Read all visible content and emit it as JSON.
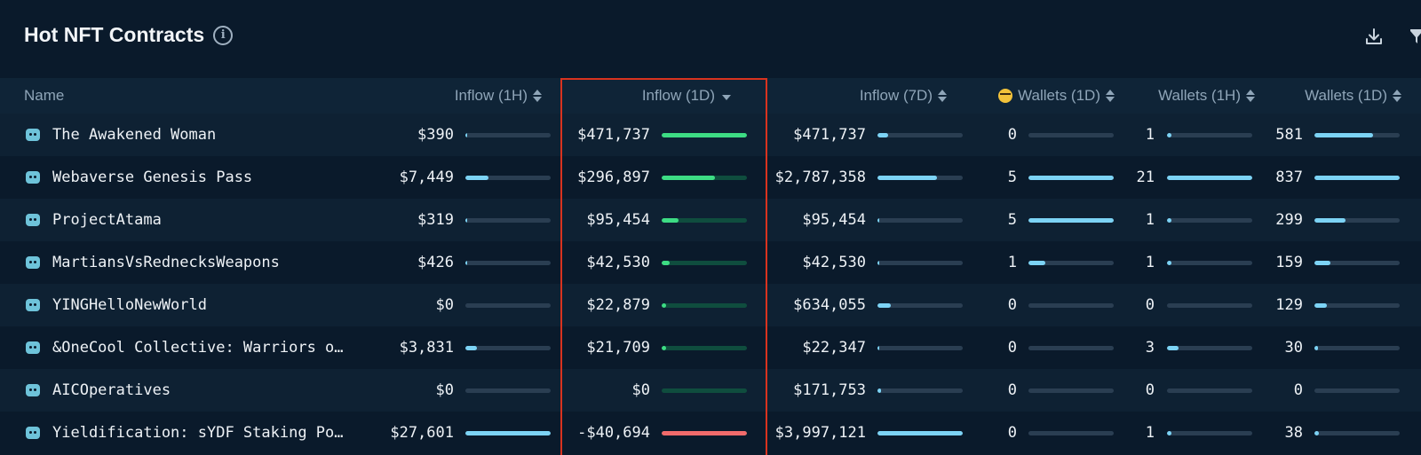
{
  "header": {
    "title": "Hot NFT Contracts",
    "info_glyph": "i"
  },
  "columns": [
    {
      "key": "name",
      "label": "Name",
      "sort": "none"
    },
    {
      "key": "inflow_1h",
      "label": "Inflow (1H)",
      "sort": "both"
    },
    {
      "key": "inflow_1d",
      "label": "Inflow (1D)",
      "sort": "desc"
    },
    {
      "key": "inflow_7d",
      "label": "Inflow (7D)",
      "sort": "both"
    },
    {
      "key": "smart_wallets_1d",
      "label": "Wallets (1D)",
      "sort": "both",
      "icon": "nerd-face-emoji-icon"
    },
    {
      "key": "wallets_1h",
      "label": "Wallets (1H)",
      "sort": "both"
    },
    {
      "key": "wallets_1d",
      "label": "Wallets (1D)",
      "sort": "both"
    }
  ],
  "rows": [
    {
      "name": "The Awakened Woman",
      "inflow_1h": {
        "text": "$390",
        "fill": 0.01
      },
      "inflow_1d": {
        "text": "$471,737",
        "fill": 1.0,
        "negative": false
      },
      "inflow_7d": {
        "text": "$471,737",
        "fill": 0.12
      },
      "smart_wallets_1d": {
        "text": "0",
        "fill": 0.0
      },
      "wallets_1h": {
        "text": "1",
        "fill": 0.05
      },
      "wallets_1d": {
        "text": "581",
        "fill": 0.69
      }
    },
    {
      "name": "Webaverse Genesis Pass",
      "inflow_1h": {
        "text": "$7,449",
        "fill": 0.27
      },
      "inflow_1d": {
        "text": "$296,897",
        "fill": 0.63,
        "negative": false
      },
      "inflow_7d": {
        "text": "$2,787,358",
        "fill": 0.7
      },
      "smart_wallets_1d": {
        "text": "5",
        "fill": 1.0
      },
      "wallets_1h": {
        "text": "21",
        "fill": 1.0
      },
      "wallets_1d": {
        "text": "837",
        "fill": 1.0
      }
    },
    {
      "name": "ProjectAtama",
      "inflow_1h": {
        "text": "$319",
        "fill": 0.01
      },
      "inflow_1d": {
        "text": "$95,454",
        "fill": 0.2,
        "negative": false
      },
      "inflow_7d": {
        "text": "$95,454",
        "fill": 0.02
      },
      "smart_wallets_1d": {
        "text": "5",
        "fill": 1.0
      },
      "wallets_1h": {
        "text": "1",
        "fill": 0.05
      },
      "wallets_1d": {
        "text": "299",
        "fill": 0.36
      }
    },
    {
      "name": "MartiansVsRednecksWeapons",
      "inflow_1h": {
        "text": "$426",
        "fill": 0.02
      },
      "inflow_1d": {
        "text": "$42,530",
        "fill": 0.09,
        "negative": false
      },
      "inflow_7d": {
        "text": "$42,530",
        "fill": 0.01
      },
      "smart_wallets_1d": {
        "text": "1",
        "fill": 0.2
      },
      "wallets_1h": {
        "text": "1",
        "fill": 0.05
      },
      "wallets_1d": {
        "text": "159",
        "fill": 0.19
      }
    },
    {
      "name": "YINGHelloNewWorld",
      "inflow_1h": {
        "text": "$0",
        "fill": 0.0
      },
      "inflow_1d": {
        "text": "$22,879",
        "fill": 0.05,
        "negative": false
      },
      "inflow_7d": {
        "text": "$634,055",
        "fill": 0.16
      },
      "smart_wallets_1d": {
        "text": "0",
        "fill": 0.0
      },
      "wallets_1h": {
        "text": "0",
        "fill": 0.0
      },
      "wallets_1d": {
        "text": "129",
        "fill": 0.15
      }
    },
    {
      "name": "&OneCool Collective: Warriors o…",
      "inflow_1h": {
        "text": "$3,831",
        "fill": 0.14
      },
      "inflow_1d": {
        "text": "$21,709",
        "fill": 0.05,
        "negative": false
      },
      "inflow_7d": {
        "text": "$22,347",
        "fill": 0.01
      },
      "smart_wallets_1d": {
        "text": "0",
        "fill": 0.0
      },
      "wallets_1h": {
        "text": "3",
        "fill": 0.14
      },
      "wallets_1d": {
        "text": "30",
        "fill": 0.04
      }
    },
    {
      "name": "AICOperatives",
      "inflow_1h": {
        "text": "$0",
        "fill": 0.0
      },
      "inflow_1d": {
        "text": "$0",
        "fill": 0.0,
        "negative": false
      },
      "inflow_7d": {
        "text": "$171,753",
        "fill": 0.04
      },
      "smart_wallets_1d": {
        "text": "0",
        "fill": 0.0
      },
      "wallets_1h": {
        "text": "0",
        "fill": 0.0
      },
      "wallets_1d": {
        "text": "0",
        "fill": 0.0
      }
    },
    {
      "name": "Yieldification: sYDF Staking Po…",
      "inflow_1h": {
        "text": "$27,601",
        "fill": 1.0
      },
      "inflow_1d": {
        "text": "-$40,694",
        "fill": 1.0,
        "negative": true
      },
      "inflow_7d": {
        "text": "$3,997,121",
        "fill": 1.0
      },
      "smart_wallets_1d": {
        "text": "0",
        "fill": 0.0
      },
      "wallets_1h": {
        "text": "1",
        "fill": 0.05
      },
      "wallets_1d": {
        "text": "38",
        "fill": 0.05
      }
    }
  ],
  "colors": {
    "background": "#0a1a2b",
    "header_row": "#0f2437",
    "bar_blue": "#7cd3f5",
    "bar_green": "#3ddc84",
    "bar_red": "#f26b6b",
    "highlight_border": "#d9331f"
  }
}
